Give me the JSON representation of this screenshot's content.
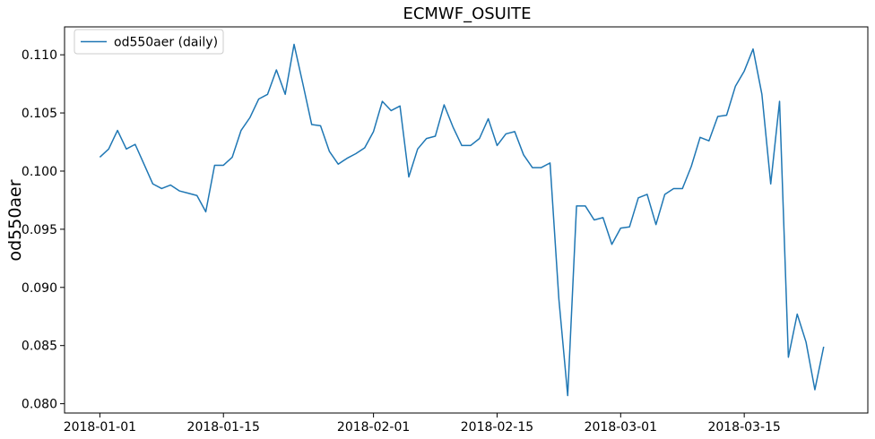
{
  "chart_data": {
    "type": "line",
    "title": "ECMWF_OSUITE",
    "xlabel": "",
    "ylabel": "od550aer",
    "legend": "upper-left",
    "grid": false,
    "x_start": "2018-01-01",
    "xlim": [
      "2017-12-28",
      "2018-03-29"
    ],
    "ylim": [
      0.0792,
      0.1124
    ],
    "x_ticks": [
      "2018-01-01",
      "2018-01-15",
      "2018-02-01",
      "2018-02-15",
      "2018-03-01",
      "2018-03-15"
    ],
    "y_ticks": [
      0.08,
      0.085,
      0.09,
      0.095,
      0.1,
      0.105,
      0.11
    ],
    "y_tick_labels": [
      "0.080",
      "0.085",
      "0.090",
      "0.095",
      "0.100",
      "0.105",
      "0.110"
    ],
    "series": [
      {
        "name": "od550aer (daily)",
        "color": "#1f77b4",
        "values": [
          0.1012,
          0.1019,
          0.1035,
          0.1019,
          0.1023,
          0.1006,
          0.0989,
          0.0985,
          0.0988,
          0.0983,
          0.0981,
          0.0979,
          0.0965,
          0.1005,
          0.1005,
          0.1012,
          0.1035,
          0.1046,
          0.1062,
          0.1066,
          0.1087,
          0.1066,
          0.1109,
          0.1075,
          0.104,
          0.1039,
          0.1017,
          0.1006,
          0.1011,
          0.1015,
          0.102,
          0.1034,
          0.106,
          0.1052,
          0.1056,
          0.0995,
          0.1019,
          0.1028,
          0.103,
          0.1057,
          0.1038,
          0.1022,
          0.1022,
          0.1028,
          0.1045,
          0.1022,
          0.1032,
          0.1034,
          0.1014,
          0.1003,
          0.1003,
          0.1007,
          0.089,
          0.0807,
          0.097,
          0.097,
          0.0958,
          0.096,
          0.0937,
          0.0951,
          0.0952,
          0.0977,
          0.098,
          0.0954,
          0.098,
          0.0985,
          0.0985,
          0.1004,
          0.1029,
          0.1026,
          0.1047,
          0.1048,
          0.1073,
          0.1086,
          0.1105,
          0.1066,
          0.0989,
          0.106,
          0.084,
          0.0877,
          0.0853,
          0.0812,
          0.0849
        ]
      }
    ]
  }
}
